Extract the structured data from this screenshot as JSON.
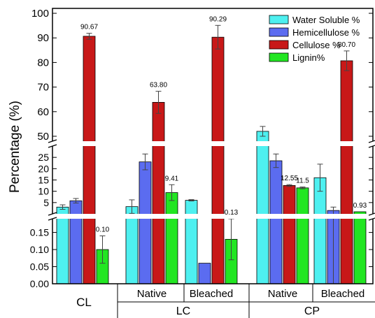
{
  "chart_data": {
    "type": "bar",
    "ylabel": "Percentage (%)",
    "y_axis_segments": [
      {
        "range": [
          0.0,
          0.19
        ],
        "ticks": [
          "0.00",
          "0.05",
          "0.10",
          "0.15"
        ],
        "tick_values": [
          0.0,
          0.05,
          0.1,
          0.15
        ]
      },
      {
        "range": [
          0,
          30
        ],
        "ticks": [
          "5",
          "10",
          "15",
          "20",
          "25"
        ],
        "tick_values": [
          5,
          10,
          15,
          20,
          25
        ]
      },
      {
        "range": [
          48,
          102
        ],
        "ticks": [
          "50",
          "60",
          "70",
          "80",
          "90",
          "100"
        ],
        "tick_values": [
          50,
          60,
          70,
          80,
          90,
          100
        ]
      }
    ],
    "legend_position": "top-right",
    "series": [
      {
        "name": "Water Soluble %",
        "color": "#4ef0f0"
      },
      {
        "name": "Hemicellulose %",
        "color": "#5b6cf0"
      },
      {
        "name": "Cellulose %",
        "color": "#c81818"
      },
      {
        "name": "Lignin%",
        "color": "#22e622"
      }
    ],
    "groups": [
      {
        "label": "CL",
        "parent": "",
        "bars": [
          {
            "series": 0,
            "value": 3.0,
            "error": 1.0
          },
          {
            "series": 1,
            "value": 5.8,
            "error": 1.0
          },
          {
            "series": 2,
            "value": 90.67,
            "error": 1.2,
            "label": "90.67"
          },
          {
            "series": 3,
            "value": 0.1,
            "error": 0.04,
            "label": "0.10"
          }
        ]
      },
      {
        "label": "Native",
        "parent": "LC",
        "bars": [
          {
            "series": 0,
            "value": 3.2,
            "error": 3.0
          },
          {
            "series": 1,
            "value": 23.0,
            "error": 3.5
          },
          {
            "series": 2,
            "value": 63.8,
            "error": 4.5,
            "label": "63.80"
          },
          {
            "series": 3,
            "value": 9.41,
            "error": 3.5,
            "label": "9.41"
          }
        ]
      },
      {
        "label": "Bleached",
        "parent": "LC",
        "bars": [
          {
            "series": 0,
            "value": 6.0,
            "error": 0.3
          },
          {
            "series": 1,
            "value": 0.06,
            "error": 0
          },
          {
            "series": 2,
            "value": 90.29,
            "error": 4.8,
            "label": "90.29"
          },
          {
            "series": 3,
            "value": 0.13,
            "error": 0.06,
            "label": "0.13"
          }
        ]
      },
      {
        "label": "Native",
        "parent": "CP",
        "bars": [
          {
            "series": 0,
            "value": 52.0,
            "error": 2.0
          },
          {
            "series": 1,
            "value": 23.5,
            "error": 3.0
          },
          {
            "series": 2,
            "value": 12.55,
            "error": 0.4,
            "label": "12.55"
          },
          {
            "series": 3,
            "value": 11.5,
            "error": 0.4,
            "label": "11.5"
          }
        ]
      },
      {
        "label": "Bleached",
        "parent": "CP",
        "bars": [
          {
            "series": 0,
            "value": 16.0,
            "error": 6.0
          },
          {
            "series": 1,
            "value": 1.5,
            "error": 1.5
          },
          {
            "series": 2,
            "value": 80.7,
            "error": 4.0,
            "label": "80.70"
          },
          {
            "series": 3,
            "value": 0.93,
            "error": 0,
            "label": "0.93"
          }
        ]
      }
    ],
    "category_axis": {
      "top_labels": [
        "Native",
        "Bleached",
        "Native",
        "Bleached"
      ],
      "bottom_labels": [
        "CL",
        "LC",
        "CP"
      ]
    }
  }
}
